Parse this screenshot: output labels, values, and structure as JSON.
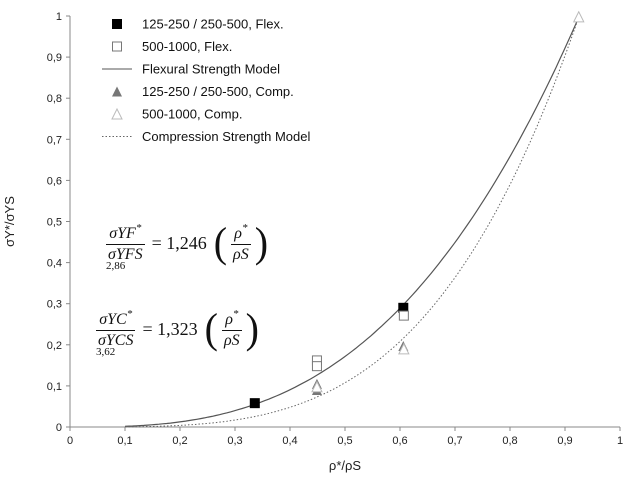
{
  "chart_data": {
    "type": "scatter",
    "xlabel": "ρ*/ρS",
    "ylabel": "σY*/σYS",
    "xlim": [
      0,
      1
    ],
    "ylim": [
      0,
      1
    ],
    "x_ticks": [
      "0",
      "0,1",
      "0,2",
      "0,3",
      "0,4",
      "0,5",
      "0,6",
      "0,7",
      "0,8",
      "0,9",
      "1"
    ],
    "y_ticks": [
      "0",
      "0,1",
      "0,2",
      "0,3",
      "0,4",
      "0,5",
      "0,6",
      "0,7",
      "0,8",
      "0,9",
      "1"
    ],
    "grid": false,
    "legend_position": "top-left",
    "series": [
      {
        "name": "125-250 / 250-500, Flex.",
        "marker": "square-filled",
        "color": "#000000",
        "points": [
          [
            0.336,
            0.058
          ],
          [
            0.606,
            0.29
          ]
        ]
      },
      {
        "name": "500-1000, Flex.",
        "marker": "square-open",
        "color": "#000000",
        "points": [
          [
            0.449,
            0.162
          ],
          [
            0.449,
            0.148
          ],
          [
            0.607,
            0.271
          ]
        ]
      },
      {
        "name": "Flexural Strength Model",
        "line": "solid",
        "color": "#555555",
        "curve": {
          "a": 1.246,
          "b": 2.86,
          "x0": 0.1,
          "x1": 0.925
        }
      },
      {
        "name": "125-250 / 250-500, Comp.",
        "marker": "triangle-filled",
        "color": "#777777",
        "points": [
          [
            0.449,
            0.105
          ],
          [
            0.449,
            0.09
          ],
          [
            0.606,
            0.197
          ],
          [
            0.925,
            1.0
          ]
        ]
      },
      {
        "name": "500-1000, Comp.",
        "marker": "triangle-open",
        "color": "#888888",
        "points": [
          [
            0.449,
            0.098
          ],
          [
            0.607,
            0.19
          ],
          [
            0.925,
            0.998
          ]
        ]
      },
      {
        "name": "Compression Strength Model",
        "line": "dotted",
        "color": "#666666",
        "curve": {
          "a": 1.323,
          "b": 3.62,
          "x0": 0.1,
          "x1": 0.925
        }
      }
    ],
    "annotations": {
      "eq1": {
        "lhs_num": "σYF",
        "lhs_den": "σYFS",
        "star": "*",
        "coef": "= 1,246",
        "rho": "ρ",
        "rho_s": "ρS",
        "exponent": "2,86"
      },
      "eq2": {
        "lhs_num": "σYC",
        "lhs_den": "σYCS",
        "star": "*",
        "coef": "= 1,323",
        "rho": "ρ",
        "rho_s": "ρS",
        "exponent": "3,62"
      }
    }
  }
}
